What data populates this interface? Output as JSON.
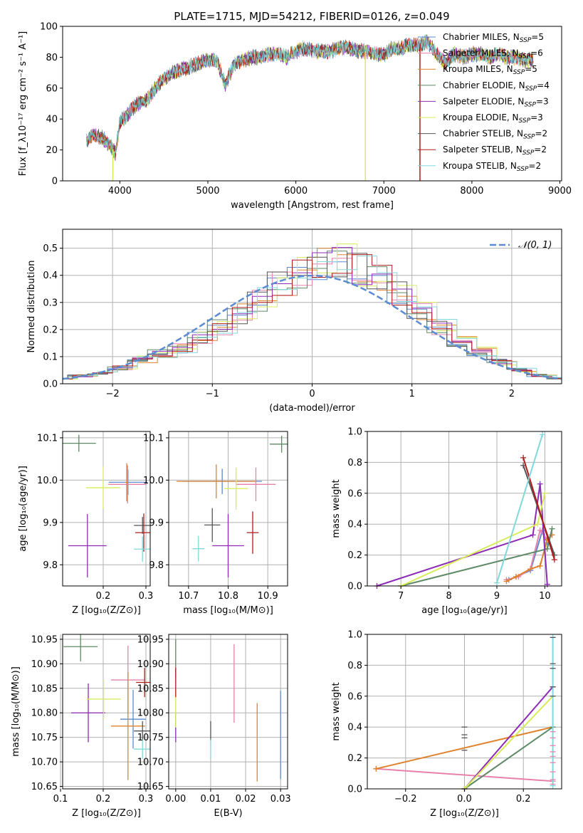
{
  "title": "PLATE=1715, MJD=54212, FIBERID=0126, z=0.049",
  "colors": {
    "chabrier_miles": "#5b8bd0",
    "salpeter_miles": "#e880ac",
    "kroupa_miles": "#e0822c",
    "chabrier_elodie": "#5f8a66",
    "salpeter_elodie": "#8e2bb6",
    "kroupa_elodie": "#d8ec5a",
    "chabrier_stelib": "#555555",
    "salpeter_stelib": "#b01c1c",
    "kroupa_stelib": "#80d8dc",
    "normal": "#5b8bd0",
    "grid": "#b0b0b0"
  },
  "chart_data": [
    {
      "id": "spectrum",
      "type": "line",
      "xlabel": "wavelength [Angstrom, rest frame]",
      "ylabel": "Flux [f_λ10⁻¹⁷ erg cm⁻² s⁻¹ A⁻¹]",
      "xlim": [
        3350,
        9020
      ],
      "ylim": [
        0,
        100
      ],
      "xticks": [
        "4000",
        "5000",
        "6000",
        "7000",
        "8000",
        "9000"
      ],
      "yticks": [
        "0",
        "20",
        "40",
        "60",
        "80",
        "100"
      ],
      "legend": "upper right",
      "legend_entries": [
        {
          "base": "Chabrier MILES, N",
          "sub": "SSP",
          "tail": "=5"
        },
        {
          "base": "Salpeter MILES, N",
          "sub": "SSP",
          "tail": "=6"
        },
        {
          "base": "Kroupa MILES, N",
          "sub": "SSP",
          "tail": "=5"
        },
        {
          "base": "Chabrier ELODIE, N",
          "sub": "SSP",
          "tail": "=4"
        },
        {
          "base": "Salpeter ELODIE, N",
          "sub": "SSP",
          "tail": "=3"
        },
        {
          "base": "Kroupa ELODIE, N",
          "sub": "SSP",
          "tail": "=3"
        },
        {
          "base": "Chabrier STELIB, N",
          "sub": "SSP",
          "tail": "=2"
        },
        {
          "base": "Salpeter STELIB, N",
          "sub": "SSP",
          "tail": "=2"
        },
        {
          "base": "Kroupa STELIB, N",
          "sub": "SSP",
          "tail": "=2"
        }
      ],
      "envelope": {
        "x": [
          3620,
          3700,
          3800,
          3900,
          3950,
          4000,
          4100,
          4200,
          4300,
          4400,
          4500,
          4600,
          4700,
          4800,
          4900,
          5000,
          5100,
          5200,
          5300,
          5400,
          5500,
          5600,
          5700,
          5800,
          5900,
          6000,
          6100,
          6200,
          6300,
          6400,
          6500,
          6600,
          6700,
          6800,
          6900,
          7000,
          7100,
          7200,
          7300,
          7400,
          7500,
          7600,
          7700,
          7800,
          7900,
          8000,
          8100,
          8200,
          8300,
          8400,
          8500,
          8600,
          8700
        ],
        "y": [
          26,
          30,
          28,
          22,
          18,
          38,
          44,
          50,
          52,
          60,
          66,
          70,
          72,
          74,
          76,
          78,
          78,
          62,
          76,
          78,
          80,
          80,
          82,
          82,
          80,
          84,
          86,
          84,
          84,
          84,
          86,
          86,
          84,
          84,
          82,
          82,
          86,
          86,
          88,
          88,
          90,
          82,
          76,
          82,
          80,
          82,
          82,
          80,
          82,
          80,
          80,
          78,
          78
        ]
      },
      "mask_lines": [
        {
          "x": 3920,
          "series": "kroupa_elodie"
        },
        {
          "x": 6790,
          "series": "kroupa_elodie"
        },
        {
          "x": 7410,
          "series": "salpeter_stelib"
        }
      ]
    },
    {
      "id": "residuals",
      "type": "histogram",
      "xlabel": "(data-model)/error",
      "ylabel": "Normed distribution",
      "xlim": [
        -2.5,
        2.5
      ],
      "ylim": [
        0,
        0.57
      ],
      "xticks": [
        "−2",
        "−1",
        "0",
        "1",
        "2"
      ],
      "yticks": [
        "0.0",
        "0.1",
        "0.2",
        "0.3",
        "0.4",
        "0.5"
      ],
      "legend_label": "𝒩(0, 1)",
      "bin_edges": [
        -2.6,
        -2.4,
        -2.2,
        -2.0,
        -1.8,
        -1.6,
        -1.4,
        -1.2,
        -1.0,
        -0.8,
        -0.6,
        -0.4,
        -0.2,
        0.0,
        0.2,
        0.4,
        0.6,
        0.8,
        1.0,
        1.2,
        1.4,
        1.6,
        1.8,
        2.0,
        2.2,
        2.4,
        2.6
      ],
      "hist_values": [
        0.02,
        0.03,
        0.04,
        0.06,
        0.09,
        0.11,
        0.13,
        0.17,
        0.21,
        0.26,
        0.31,
        0.36,
        0.41,
        0.44,
        0.45,
        0.42,
        0.38,
        0.33,
        0.27,
        0.21,
        0.16,
        0.12,
        0.08,
        0.05,
        0.03,
        0.02
      ]
    },
    {
      "id": "age_vs_z",
      "type": "scatter",
      "xlabel": "Z [log₁₀(Z/Z⊙)]",
      "ylabel": "age [log₁₀(age/yr)]",
      "xlim": [
        0.105,
        0.31
      ],
      "ylim": [
        9.75,
        10.115
      ],
      "xticks": [
        "0.2",
        "0.3"
      ],
      "yticks": [
        "9.8",
        "9.9",
        "10.0",
        "10.1"
      ],
      "points": [
        {
          "s": "chabrier_miles",
          "x": 0.258,
          "y": 9.995,
          "xe": 0.045,
          "ye": 0.03
        },
        {
          "s": "salpeter_miles",
          "x": 0.257,
          "y": 9.99,
          "xe": 0.045,
          "ye": 0.045
        },
        {
          "s": "kroupa_miles",
          "x": 0.255,
          "y": 9.995,
          "xe": 0.003,
          "ye": 0.045
        },
        {
          "s": "chabrier_elodie",
          "x": 0.143,
          "y": 10.087,
          "xe": 0.04,
          "ye": 0.02
        },
        {
          "s": "salpeter_elodie",
          "x": 0.163,
          "y": 9.845,
          "xe": 0.045,
          "ye": 0.075
        },
        {
          "s": "kroupa_elodie",
          "x": 0.2,
          "y": 9.982,
          "xe": 0.04,
          "ye": 0.05
        },
        {
          "s": "chabrier_stelib",
          "x": 0.292,
          "y": 9.893,
          "xe": 0.02,
          "ye": 0.02
        },
        {
          "s": "salpeter_stelib",
          "x": 0.295,
          "y": 9.876,
          "xe": 0.02,
          "ye": 0.045
        },
        {
          "s": "kroupa_stelib",
          "x": 0.292,
          "y": 9.837,
          "xe": 0.02,
          "ye": 0.03
        }
      ]
    },
    {
      "id": "age_vs_mass",
      "type": "scatter",
      "xlabel": "mass [log₁₀(M/M⊙)]",
      "ylabel": "",
      "xlim": [
        10.65,
        10.95
      ],
      "ylim": [
        9.75,
        10.115
      ],
      "xticks": [
        "10.7",
        "10.8",
        "10.9"
      ],
      "yticks": [
        "9.8",
        "9.9",
        "10.0",
        "10.1"
      ],
      "points": [
        {
          "s": "chabrier_miles",
          "x": 10.785,
          "y": 9.997,
          "xe": 0.1,
          "ye": 0.03
        },
        {
          "s": "salpeter_miles",
          "x": 10.87,
          "y": 9.99,
          "xe": 0.05,
          "ye": 0.04
        },
        {
          "s": "kroupa_miles",
          "x": 10.77,
          "y": 9.997,
          "xe": 0.1,
          "ye": 0.04
        },
        {
          "s": "chabrier_elodie",
          "x": 10.935,
          "y": 10.085,
          "xe": 0.03,
          "ye": 0.02
        },
        {
          "s": "salpeter_elodie",
          "x": 10.8,
          "y": 9.845,
          "xe": 0.04,
          "ye": 0.075
        },
        {
          "s": "kroupa_elodie",
          "x": 10.82,
          "y": 9.98,
          "xe": 0.03,
          "ye": 0.05
        },
        {
          "s": "chabrier_stelib",
          "x": 10.76,
          "y": 9.894,
          "xe": 0.02,
          "ye": 0.04
        },
        {
          "s": "salpeter_stelib",
          "x": 10.862,
          "y": 9.876,
          "xe": 0.015,
          "ye": 0.05
        },
        {
          "s": "kroupa_stelib",
          "x": 10.725,
          "y": 9.838,
          "xe": 0.015,
          "ye": 0.03
        }
      ]
    },
    {
      "id": "mass_weight_vs_age",
      "type": "line",
      "xlabel": "age [log₁₀(age/yr)]",
      "ylabel": "mass weight",
      "xlim": [
        6.3,
        10.35
      ],
      "ylim": [
        0,
        1
      ],
      "xticks": [
        "7",
        "8",
        "9",
        "10"
      ],
      "yticks": [
        "0.0",
        "0.2",
        "0.4",
        "0.6",
        "0.8",
        "1.0"
      ],
      "series": [
        {
          "s": "chabrier_miles",
          "x": [
            9.25,
            9.4,
            9.7,
            9.95,
            10.05
          ],
          "y": [
            0.04,
            0.06,
            0.1,
            0.36,
            0.28
          ]
        },
        {
          "s": "salpeter_miles",
          "x": [
            9.2,
            9.45,
            9.7,
            9.9,
            10.05,
            10.15
          ],
          "y": [
            0.04,
            0.06,
            0.11,
            0.36,
            0.3,
            0.33
          ]
        },
        {
          "s": "kroupa_miles",
          "x": [
            9.2,
            9.4,
            9.7,
            9.9,
            10.05,
            10.15
          ],
          "y": [
            0.03,
            0.06,
            0.11,
            0.13,
            0.3,
            0.33
          ]
        },
        {
          "s": "chabrier_elodie",
          "x": [
            7.0,
            10.05,
            10.15
          ],
          "y": [
            0.0,
            0.24,
            0.37
          ]
        },
        {
          "s": "salpeter_elodie",
          "x": [
            6.5,
            9.75,
            9.9,
            10.05
          ],
          "y": [
            0.0,
            0.33,
            0.66,
            0.01
          ]
        },
        {
          "s": "kroupa_elodie",
          "x": [
            7.0,
            9.85,
            10.0
          ],
          "y": [
            0.0,
            0.4,
            0.6
          ]
        },
        {
          "s": "chabrier_stelib",
          "x": [
            9.55,
            10.2
          ],
          "y": [
            0.78,
            0.2
          ]
        },
        {
          "s": "salpeter_stelib",
          "x": [
            9.55,
            10.2
          ],
          "y": [
            0.83,
            0.17
          ]
        },
        {
          "s": "kroupa_stelib",
          "x": [
            9.0,
            9.95
          ],
          "y": [
            0.02,
            0.98
          ]
        }
      ]
    },
    {
      "id": "mass_vs_z",
      "type": "scatter",
      "xlabel": "Z [log₁₀(Z/Z⊙)]",
      "ylabel": "mass [log₁₀(M/M⊙)]",
      "xlim": [
        0.105,
        0.31
      ],
      "ylim": [
        10.645,
        10.96
      ],
      "xticks": [
        "0.1",
        "0.2",
        "0.3"
      ],
      "yticks": [
        "10.65",
        "10.70",
        "10.75",
        "10.80",
        "10.85",
        "10.90",
        "10.95"
      ],
      "points": [
        {
          "s": "chabrier_miles",
          "x": 0.27,
          "y": 10.787,
          "xe": 0.03,
          "ye": 0.06
        },
        {
          "s": "salpeter_miles",
          "x": 0.258,
          "y": 10.867,
          "xe": 0.04,
          "ye": 0.07
        },
        {
          "s": "kroupa_miles",
          "x": 0.258,
          "y": 10.773,
          "xe": 0.04,
          "ye": 0.11
        },
        {
          "s": "chabrier_elodie",
          "x": 0.147,
          "y": 10.935,
          "xe": 0.04,
          "ye": 0.03
        },
        {
          "s": "salpeter_elodie",
          "x": 0.165,
          "y": 10.8,
          "xe": 0.04,
          "ye": 0.06
        },
        {
          "s": "kroupa_elodie",
          "x": 0.201,
          "y": 10.828,
          "xe": 0.04,
          "ye": 0.04
        },
        {
          "s": "chabrier_stelib",
          "x": 0.292,
          "y": 10.763,
          "xe": 0.02,
          "ye": 0.02
        },
        {
          "s": "salpeter_stelib",
          "x": 0.297,
          "y": 10.862,
          "xe": 0.02,
          "ye": 0.03
        },
        {
          "s": "kroupa_stelib",
          "x": 0.292,
          "y": 10.726,
          "xe": 0.02,
          "ye": 0.02
        }
      ]
    },
    {
      "id": "mass_vs_ebv",
      "type": "scatter",
      "xlabel": "E(B-V)",
      "ylabel": "",
      "xlim": [
        -0.002,
        0.032
      ],
      "ylim": [
        10.645,
        10.96
      ],
      "xticks": [
        "0.00",
        "0.01",
        "0.02",
        "0.03"
      ],
      "yticks": [
        "10.65",
        "10.70",
        "10.75",
        "10.80",
        "10.85",
        "10.90",
        "10.95"
      ],
      "points": [
        {
          "s": "chabrier_miles",
          "x": 0.03,
          "y": 10.755,
          "xe": 0.0,
          "ye": 0.09
        },
        {
          "s": "salpeter_miles",
          "x": 0.0167,
          "y": 10.86,
          "xe": 0.0,
          "ye": 0.08
        },
        {
          "s": "kroupa_miles",
          "x": 0.0233,
          "y": 10.74,
          "xe": 0.0,
          "ye": 0.08
        },
        {
          "s": "chabrier_elodie",
          "x": 0.0,
          "y": 10.91,
          "xe": 0.0,
          "ye": 0.04
        },
        {
          "s": "salpeter_elodie",
          "x": 0.0,
          "y": 10.77,
          "xe": 0.0,
          "ye": 0.03
        },
        {
          "s": "kroupa_elodie",
          "x": 0.0,
          "y": 10.81,
          "xe": 0.0,
          "ye": 0.04
        },
        {
          "s": "chabrier_stelib",
          "x": 0.01,
          "y": 10.763,
          "xe": 0.0,
          "ye": 0.02
        },
        {
          "s": "salpeter_stelib",
          "x": 0.0,
          "y": 10.862,
          "xe": 0.0,
          "ye": 0.03
        },
        {
          "s": "kroupa_stelib",
          "x": 0.01,
          "y": 10.726,
          "xe": 0.0,
          "ye": 0.02
        }
      ]
    },
    {
      "id": "mass_weight_vs_z",
      "type": "line",
      "xlabel": "Z [log₁₀(Z/Z⊙)]",
      "ylabel": "mass weight",
      "xlim": [
        -0.33,
        0.33
      ],
      "ylim": [
        0,
        1
      ],
      "xticks": [
        "−0.2",
        "0.0",
        "0.2"
      ],
      "yticks": [
        "0.0",
        "0.2",
        "0.4",
        "0.6",
        "0.8",
        "1.0"
      ],
      "series": [
        {
          "s": "salpeter_miles",
          "x": [
            -0.3,
            0.3
          ],
          "y": [
            0.13,
            0.05
          ]
        },
        {
          "s": "kroupa_miles",
          "x": [
            -0.3,
            0.3
          ],
          "y": [
            0.13,
            0.4
          ]
        },
        {
          "s": "chabrier_elodie",
          "x": [
            0.0,
            0.3
          ],
          "y": [
            0.0,
            0.4
          ]
        },
        {
          "s": "salpeter_elodie",
          "x": [
            0.0,
            0.3
          ],
          "y": [
            0.0,
            0.66
          ]
        },
        {
          "s": "kroupa_elodie",
          "x": [
            0.0,
            0.3
          ],
          "y": [
            0.0,
            0.6
          ]
        },
        {
          "s": "kroupa_stelib",
          "x": [
            0.3,
            0.3
          ],
          "y": [
            0.02,
            0.98
          ]
        }
      ],
      "ticks_at_zero": [
        0.0,
        0.25,
        0.33,
        0.35,
        0.4
      ],
      "ticks_at_max": [
        0.03,
        0.06,
        0.11,
        0.17,
        0.21,
        0.24,
        0.28,
        0.33,
        0.37,
        0.6,
        0.66,
        0.78,
        0.81,
        0.98
      ]
    }
  ]
}
